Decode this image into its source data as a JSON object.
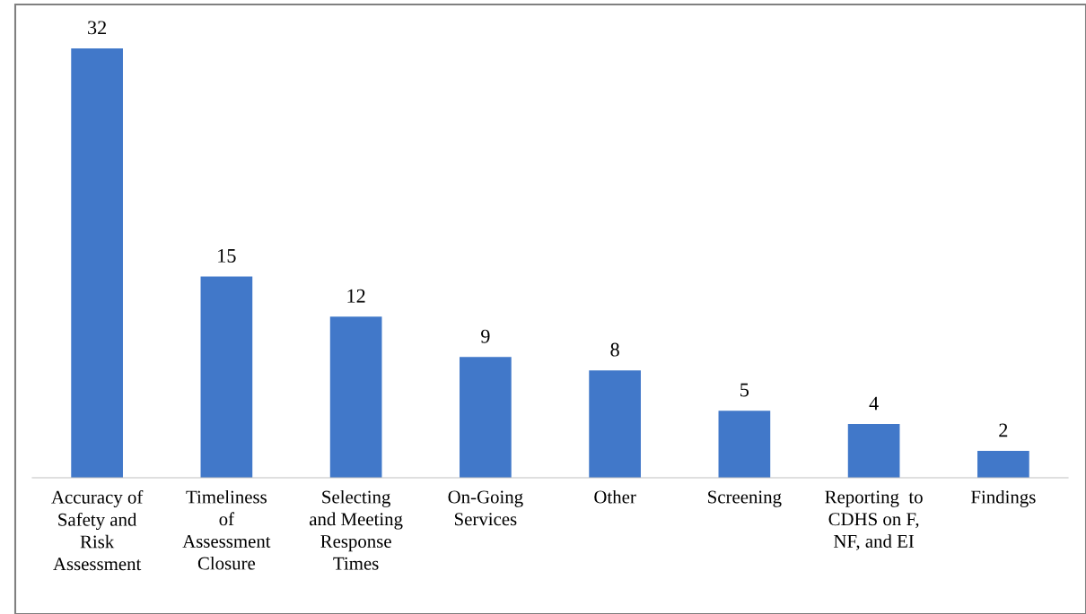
{
  "chart_data": {
    "type": "bar",
    "categories": [
      "Accuracy of\nSafety and\nRisk\nAssessment",
      "Timeliness\nof\nAssessment\nClosure",
      "Selecting\nand Meeting\nResponse\nTimes",
      "On-Going\nServices",
      "Other",
      "Screening",
      "Reporting  to\nCDHS on F,\nNF, and EI",
      "Findings"
    ],
    "values": [
      32,
      15,
      12,
      9,
      8,
      5,
      4,
      2
    ],
    "color": "#4178c9",
    "data_labels": true
  }
}
